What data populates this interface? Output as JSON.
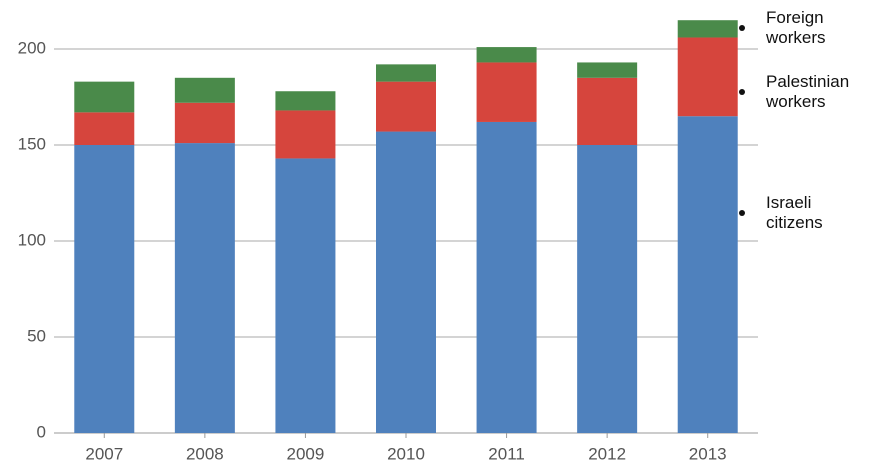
{
  "chart_data": {
    "type": "stacked_bar",
    "categories": [
      "2007",
      "2008",
      "2009",
      "2010",
      "2011",
      "2012",
      "2013"
    ],
    "series": [
      {
        "name": "Israeli citizens",
        "color": "#4f81bd",
        "values": [
          150,
          151,
          143,
          157,
          162,
          150,
          165
        ]
      },
      {
        "name": "Palestinian workers",
        "color": "#d6453d",
        "values": [
          17,
          21,
          25,
          26,
          31,
          35,
          41
        ]
      },
      {
        "name": "Foreign workers",
        "color": "#4a8a4a",
        "values": [
          16,
          13,
          10,
          9,
          8,
          8,
          9
        ]
      }
    ],
    "ylim": [
      0,
      220
    ],
    "yticks": [
      0,
      50,
      100,
      150,
      200
    ],
    "grid": true
  }
}
